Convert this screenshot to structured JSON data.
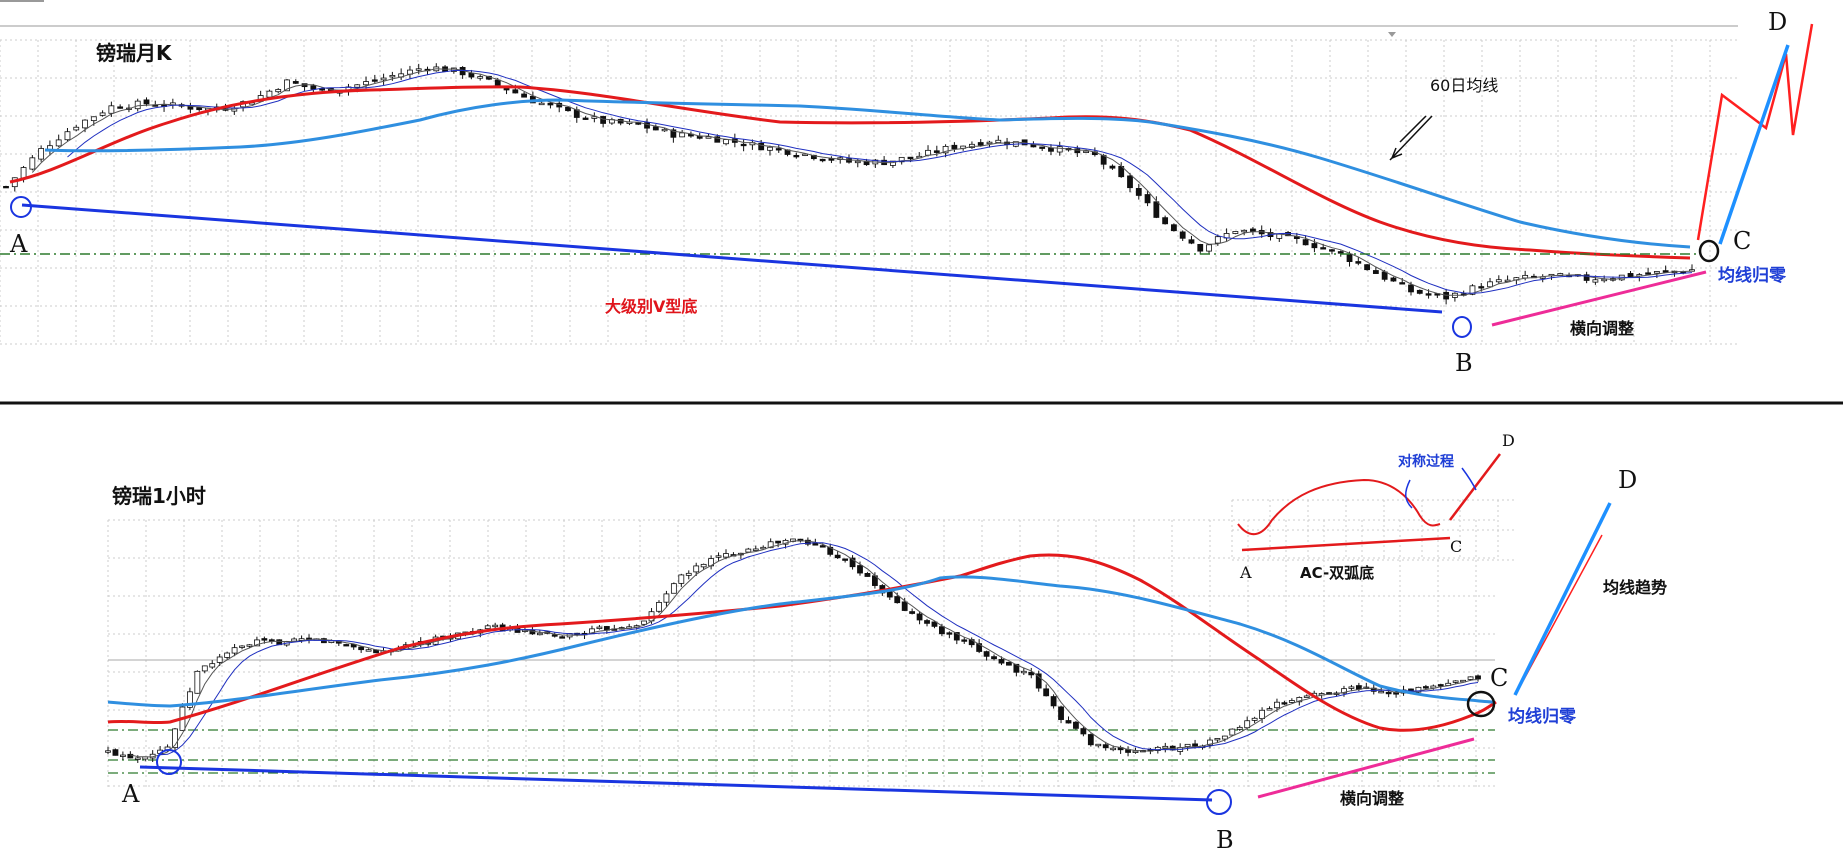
{
  "colors": {
    "ma_red": "#e31a1c",
    "ma_blue": "#2f8fe0",
    "trend_line": "#1a35e0",
    "magenta": "#ee2c98",
    "dash_green": "#2d7a2d",
    "circle_blue": "#1a35e0",
    "grid": "#cccccc",
    "red_line": "#ff2020",
    "blue_line": "#1e90ff"
  },
  "top_panel": {
    "title": "镑瑞月K",
    "ma_label": "60日均线",
    "pattern_label": "大级别V型底",
    "point_a": "A",
    "point_b": "B",
    "point_c": "C",
    "point_d": "D",
    "sideways_label": "横向调整",
    "ma_zero_label": "均线归零"
  },
  "bottom_panel": {
    "title": "镑瑞1小时",
    "point_a": "A",
    "point_b": "B",
    "point_c": "C",
    "point_d": "D",
    "sideways_label": "横向调整",
    "ma_zero_label": "均线归零",
    "trend_label": "均线趋势",
    "inset_symmetric": "对称过程",
    "inset_a": "A",
    "inset_c": "C",
    "inset_d": "D",
    "inset_pattern": "AC-双弧底"
  },
  "chart_data": [
    {
      "type": "candlestick",
      "name": "镑瑞月K",
      "price_path": [
        100,
        112,
        120,
        126,
        127,
        126,
        125,
        128,
        134,
        131,
        133,
        136,
        139,
        137,
        133,
        128,
        124,
        121,
        120,
        117,
        116,
        114,
        112,
        110,
        108,
        108,
        110,
        113,
        115,
        114,
        112,
        110,
        100,
        88,
        80,
        86,
        84,
        82,
        78,
        72,
        66,
        64,
        68,
        70,
        71,
        70,
        71,
        72,
        73
      ],
      "annotations": [
        "60日均线",
        "大级别V型底",
        "横向调整",
        "均线归零"
      ]
    },
    {
      "type": "candlestick",
      "name": "镑瑞1小时",
      "price_path": [
        60,
        58,
        62,
        92,
        100,
        104,
        104,
        105,
        103,
        100,
        102,
        105,
        108,
        110,
        108,
        106,
        108,
        110,
        112,
        128,
        136,
        140,
        143,
        145,
        142,
        135,
        124,
        115,
        108,
        102,
        96,
        90,
        74,
        64,
        60,
        61,
        62,
        64,
        70,
        78,
        82,
        84,
        86,
        84,
        85,
        87,
        90
      ],
      "annotations": [
        "对称过程",
        "AC-双弧底",
        "均线趋势",
        "横向调整",
        "均线归零"
      ]
    }
  ]
}
